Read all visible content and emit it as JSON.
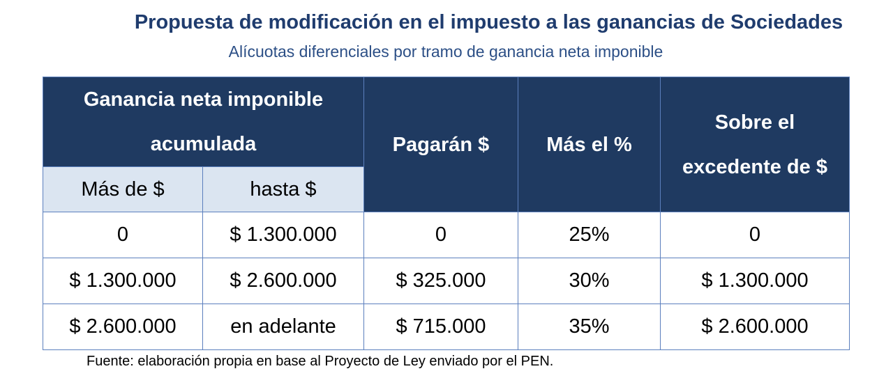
{
  "title": "Propuesta de modificación en el impuesto a las ganancias de Sociedades",
  "subtitle": "Alícuotas diferenciales por tramo de ganancia neta imponible",
  "table": {
    "group_header": "Ganancia neta imponible acumulada",
    "sub_headers": [
      "Más de $",
      "hasta $"
    ],
    "headers": [
      "Pagarán $",
      "Más el %",
      "Sobre el excedente de $"
    ],
    "rows": [
      [
        "0",
        "$ 1.300.000",
        "0",
        "25%",
        "0"
      ],
      [
        "$ 1.300.000",
        "$ 2.600.000",
        "$ 325.000",
        "30%",
        "$ 1.300.000"
      ],
      [
        "$ 2.600.000",
        "en adelante",
        "$ 715.000",
        "35%",
        "$ 2.600.000"
      ]
    ]
  },
  "source": "Fuente: elaboración propia en base al Proyecto de Ley enviado por el PEN.",
  "colors": {
    "header_bg": "#1f3a61",
    "subheader_bg": "#dbe5f1",
    "title": "#1f3c6e",
    "border": "#5b7fbd"
  }
}
